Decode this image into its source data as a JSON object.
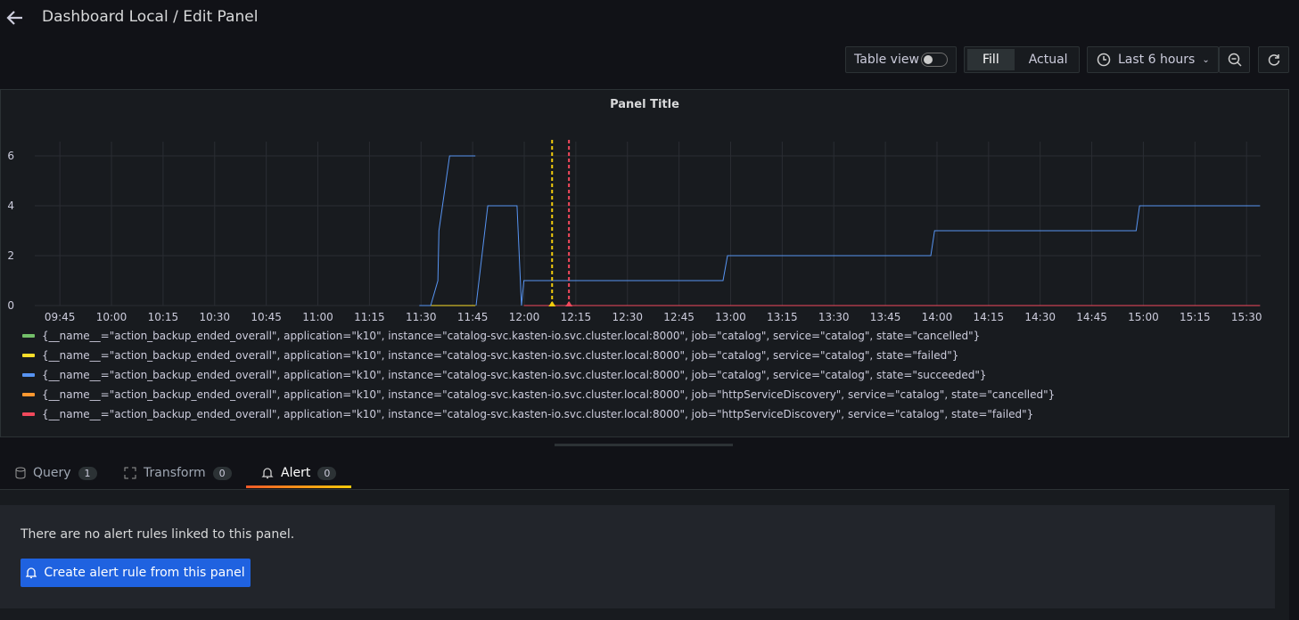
{
  "header": {
    "title": "Dashboard Local / Edit Panel"
  },
  "toolbar": {
    "table_view": "Table view",
    "fill": "Fill",
    "actual": "Actual",
    "time_range": "Last 6 hours"
  },
  "chart_data": {
    "type": "line",
    "title": "Panel Title",
    "x": [
      689.5,
      692.8,
      694.9,
      695.2,
      698.3,
      705.8,
      705.9,
      706,
      709.4,
      717.9,
      719.2,
      719.9,
      777.8,
      779.1,
      838.2,
      839.3,
      897.9,
      898.9,
      933.9
    ],
    "xlim": [
      577.7,
      934.1
    ],
    "xticks": [
      {
        "value": 585,
        "label": "09:45"
      },
      {
        "value": 600,
        "label": "10:00"
      },
      {
        "value": 615,
        "label": "10:15"
      },
      {
        "value": 630,
        "label": "10:30"
      },
      {
        "value": 645,
        "label": "10:45"
      },
      {
        "value": 660,
        "label": "11:00"
      },
      {
        "value": 675,
        "label": "11:15"
      },
      {
        "value": 690,
        "label": "11:30"
      },
      {
        "value": 705,
        "label": "11:45"
      },
      {
        "value": 720,
        "label": "12:00"
      },
      {
        "value": 735,
        "label": "12:15"
      },
      {
        "value": 750,
        "label": "12:30"
      },
      {
        "value": 765,
        "label": "12:45"
      },
      {
        "value": 780,
        "label": "13:00"
      },
      {
        "value": 795,
        "label": "13:15"
      },
      {
        "value": 810,
        "label": "13:30"
      },
      {
        "value": 825,
        "label": "13:45"
      },
      {
        "value": 840,
        "label": "14:00"
      },
      {
        "value": 855,
        "label": "14:15"
      },
      {
        "value": 870,
        "label": "14:30"
      },
      {
        "value": 885,
        "label": "14:45"
      },
      {
        "value": 900,
        "label": "15:00"
      },
      {
        "value": 915,
        "label": "15:15"
      },
      {
        "value": 930,
        "label": "15:30"
      }
    ],
    "ylim": [
      0,
      6.57
    ],
    "yticks": [
      0,
      2,
      4,
      6
    ],
    "grid": true,
    "series": [
      {
        "name": "{__name__=\"action_backup_ended_overall\", application=\"k10\", instance=\"catalog-svc.kasten-io.svc.cluster.local:8000\", job=\"catalog\", service=\"catalog\", state=\"cancelled\"}",
        "color": "#73bf69",
        "values": [
          null,
          null,
          null,
          null,
          null,
          null,
          null,
          null,
          null,
          null,
          null,
          null,
          null,
          null,
          null,
          null,
          null,
          null,
          null
        ]
      },
      {
        "name": "{__name__=\"action_backup_ended_overall\", application=\"k10\", instance=\"catalog-svc.kasten-io.svc.cluster.local:8000\", job=\"catalog\", service=\"catalog\", state=\"failed\"}",
        "color": "#fade2a",
        "values": [
          null,
          0,
          0,
          0,
          0,
          0,
          null,
          null,
          null,
          null,
          null,
          null,
          null,
          null,
          null,
          null,
          null,
          null,
          null
        ]
      },
      {
        "name": "{__name__=\"action_backup_ended_overall\", application=\"k10\", instance=\"catalog-svc.kasten-io.svc.cluster.local:8000\", job=\"catalog\", service=\"catalog\", state=\"succeeded\"}",
        "color": "#5794f2",
        "values": [
          0,
          0,
          1,
          3,
          6,
          6,
          null,
          0,
          4,
          4,
          0,
          1,
          1,
          2,
          2,
          3,
          3,
          4,
          4
        ]
      },
      {
        "name": "{__name__=\"action_backup_ended_overall\", application=\"k10\", instance=\"catalog-svc.kasten-io.svc.cluster.local:8000\", job=\"httpServiceDiscovery\", service=\"catalog\", state=\"cancelled\"}",
        "color": "#ff9830",
        "values": [
          null,
          null,
          null,
          null,
          null,
          null,
          null,
          null,
          null,
          null,
          null,
          null,
          null,
          null,
          null,
          null,
          null,
          null,
          null
        ]
      },
      {
        "name": "{__name__=\"action_backup_ended_overall\", application=\"k10\", instance=\"catalog-svc.kasten-io.svc.cluster.local:8000\", job=\"httpServiceDiscovery\", service=\"catalog\", state=\"failed\"}",
        "color": "#f2495c",
        "values": [
          null,
          null,
          null,
          null,
          null,
          null,
          null,
          null,
          null,
          null,
          null,
          0,
          0,
          0,
          0,
          0,
          0,
          0,
          0
        ]
      }
    ],
    "annotations": [
      {
        "x": 728.1,
        "color": "#f2cc0c"
      },
      {
        "x": 733.0,
        "color": "#f2495c"
      }
    ]
  },
  "tabs": [
    {
      "label": "Query",
      "count": 1
    },
    {
      "label": "Transform",
      "count": 0
    },
    {
      "label": "Alert",
      "count": 0
    }
  ],
  "alert": {
    "message": "There are no alert rules linked to this panel.",
    "button": "Create alert rule from this panel"
  }
}
